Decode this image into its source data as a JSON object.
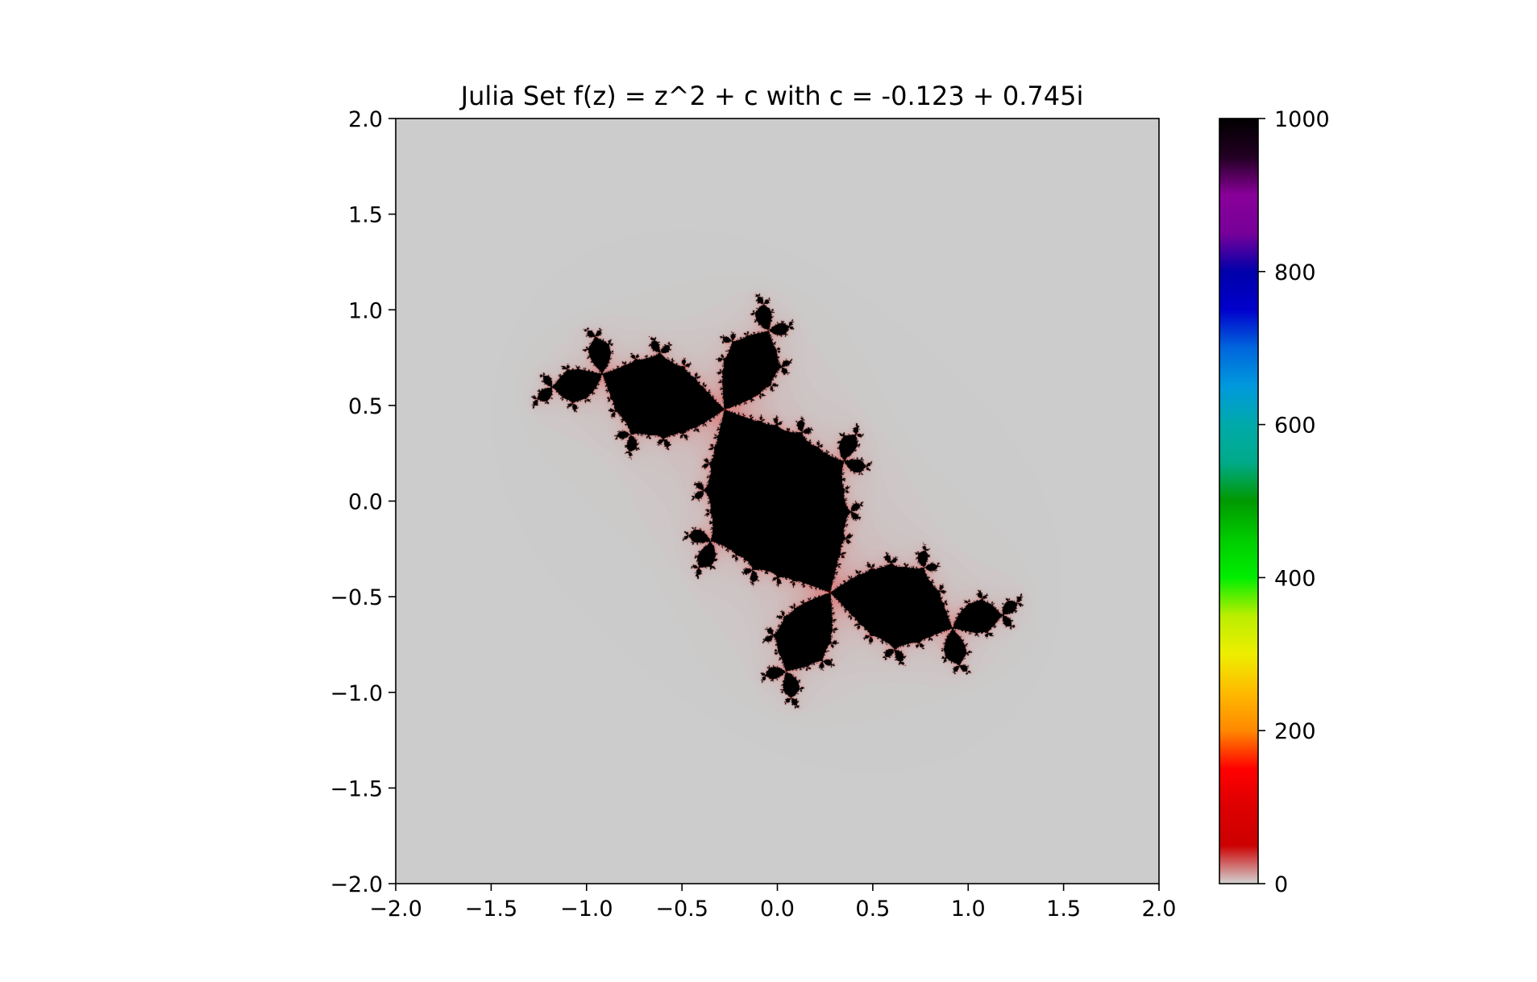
{
  "chart_data": {
    "type": "heatmap",
    "title": "Julia Set f(z) = z^2 + c with c = -0.123 + 0.745i",
    "xlabel": "",
    "ylabel": "",
    "xlim": [
      -2.0,
      2.0
    ],
    "ylim": [
      -2.0,
      2.0
    ],
    "x_ticks": [
      -2.0,
      -1.5,
      -1.0,
      -0.5,
      0.0,
      0.5,
      1.0,
      1.5,
      2.0
    ],
    "y_ticks": [
      -2.0,
      -1.5,
      -1.0,
      -0.5,
      0.0,
      0.5,
      1.0,
      1.5,
      2.0
    ],
    "x_tick_labels": [
      "−2.0",
      "−1.5",
      "−1.0",
      "−0.5",
      "0.0",
      "0.5",
      "1.0",
      "1.5",
      "2.0"
    ],
    "y_tick_labels": [
      "−2.0",
      "−1.5",
      "−1.0",
      "−0.5",
      "0.0",
      "0.5",
      "1.0",
      "1.5",
      "2.0"
    ],
    "c": {
      "re": -0.123,
      "im": 0.745
    },
    "max_iter": 1000,
    "colormap": "nipy_spectral_r",
    "colorbar": {
      "min": 0,
      "max": 1000,
      "ticks": [
        0,
        200,
        400,
        600,
        800,
        1000
      ],
      "tick_labels": [
        "0",
        "200",
        "400",
        "600",
        "800",
        "1000"
      ]
    },
    "grid": false,
    "background_color": "#cccccc",
    "set_color": "#000000"
  }
}
